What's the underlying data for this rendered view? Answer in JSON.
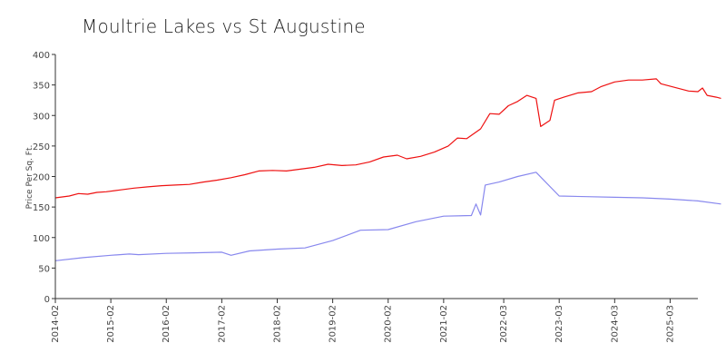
{
  "chart_data": {
    "type": "line",
    "title": "Moultrie Lakes vs St Augustine",
    "xlabel": "",
    "ylabel": "Price Per Sq. Ft.",
    "ylim": [
      0,
      400
    ],
    "yticks": [
      0,
      50,
      100,
      150,
      200,
      250,
      300,
      350,
      400
    ],
    "xlim": [
      "2014-02",
      "2025-09"
    ],
    "xticks": [
      "2014-02",
      "2015-02",
      "2016-02",
      "2017-02",
      "2018-02",
      "2019-02",
      "2020-02",
      "2021-02",
      "2022-03",
      "2023-03",
      "2024-03",
      "2025-03"
    ],
    "grid": false,
    "legend": "none",
    "series": [
      {
        "color": "#ee1111",
        "points": [
          [
            "2014-02",
            165
          ],
          [
            "2014-05",
            168
          ],
          [
            "2014-07",
            172
          ],
          [
            "2014-09",
            171
          ],
          [
            "2014-11",
            174
          ],
          [
            "2015-01",
            175
          ],
          [
            "2015-04",
            178
          ],
          [
            "2015-07",
            181
          ],
          [
            "2015-10",
            183
          ],
          [
            "2016-01",
            185
          ],
          [
            "2016-04",
            186
          ],
          [
            "2016-07",
            187
          ],
          [
            "2016-10",
            191
          ],
          [
            "2017-01",
            194
          ],
          [
            "2017-04",
            198
          ],
          [
            "2017-07",
            203
          ],
          [
            "2017-10",
            209
          ],
          [
            "2018-01",
            210
          ],
          [
            "2018-04",
            209
          ],
          [
            "2018-07",
            212
          ],
          [
            "2018-10",
            215
          ],
          [
            "2019-01",
            220
          ],
          [
            "2019-04",
            218
          ],
          [
            "2019-07",
            219
          ],
          [
            "2019-10",
            224
          ],
          [
            "2020-01",
            232
          ],
          [
            "2020-04",
            235
          ],
          [
            "2020-06",
            229
          ],
          [
            "2020-09",
            233
          ],
          [
            "2020-12",
            240
          ],
          [
            "2021-03",
            250
          ],
          [
            "2021-05",
            263
          ],
          [
            "2021-07",
            262
          ],
          [
            "2021-10",
            278
          ],
          [
            "2021-12",
            303
          ],
          [
            "2022-02",
            302
          ],
          [
            "2022-04",
            316
          ],
          [
            "2022-06",
            323
          ],
          [
            "2022-08",
            333
          ],
          [
            "2022-10",
            328
          ],
          [
            "2022-11",
            282
          ],
          [
            "2023-01",
            292
          ],
          [
            "2023-02",
            325
          ],
          [
            "2023-04",
            330
          ],
          [
            "2023-07",
            337
          ],
          [
            "2023-10",
            339
          ],
          [
            "2023-12",
            347
          ],
          [
            "2024-03",
            355
          ],
          [
            "2024-06",
            358
          ],
          [
            "2024-09",
            358
          ],
          [
            "2024-12",
            360
          ],
          [
            "2025-01",
            352
          ],
          [
            "2025-04",
            346
          ],
          [
            "2025-07",
            340
          ],
          [
            "2025-09",
            339
          ],
          [
            "2025-10",
            345
          ],
          [
            "2025-11",
            333
          ],
          [
            "2026-01",
            330
          ],
          [
            "2026-02",
            328
          ]
        ]
      },
      {
        "color": "#8888ee",
        "points": [
          [
            "2014-02",
            62
          ],
          [
            "2014-08",
            67
          ],
          [
            "2015-02",
            71
          ],
          [
            "2015-06",
            73
          ],
          [
            "2015-08",
            72
          ],
          [
            "2016-02",
            74
          ],
          [
            "2016-08",
            75
          ],
          [
            "2017-02",
            76
          ],
          [
            "2017-04",
            71
          ],
          [
            "2017-08",
            78
          ],
          [
            "2018-02",
            81
          ],
          [
            "2018-08",
            83
          ],
          [
            "2019-02",
            95
          ],
          [
            "2019-08",
            112
          ],
          [
            "2020-02",
            113
          ],
          [
            "2020-08",
            126
          ],
          [
            "2021-02",
            135
          ],
          [
            "2021-08",
            136
          ],
          [
            "2021-09",
            155
          ],
          [
            "2021-10",
            137
          ],
          [
            "2021-11",
            186
          ],
          [
            "2022-02",
            191
          ],
          [
            "2022-06",
            200
          ],
          [
            "2022-10",
            207
          ],
          [
            "2023-03",
            168
          ],
          [
            "2023-09",
            167
          ],
          [
            "2024-03",
            166
          ],
          [
            "2024-09",
            165
          ],
          [
            "2025-03",
            163
          ],
          [
            "2025-09",
            160
          ],
          [
            "2026-02",
            155
          ]
        ]
      }
    ]
  }
}
